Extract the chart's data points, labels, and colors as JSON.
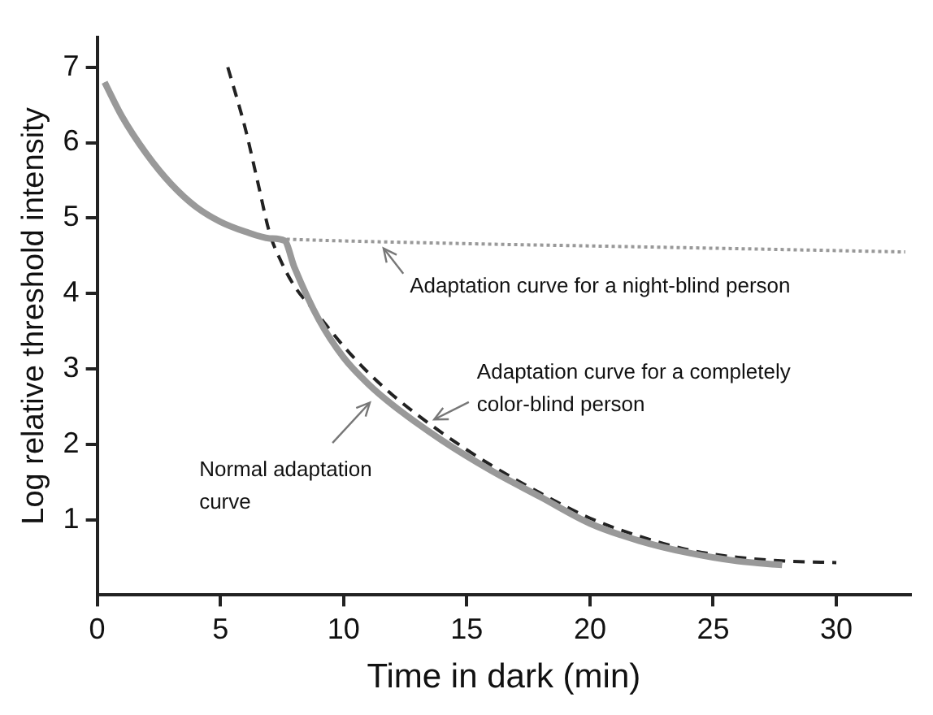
{
  "chart_data": {
    "type": "line",
    "xlabel": "Time in dark (min)",
    "ylabel": "Log relative threshold intensity",
    "xlim": [
      0,
      33
    ],
    "xticks": [
      0,
      5,
      10,
      15,
      20,
      25,
      30
    ],
    "ylim": [
      0,
      7.4
    ],
    "yticks": [
      1,
      2,
      3,
      4,
      5,
      6,
      7
    ],
    "grid": false,
    "legend": false,
    "marker": "none",
    "series": [
      {
        "color": "#999999",
        "line_style": "solid",
        "x": [
          0.3,
          1,
          2,
          3,
          4,
          5,
          6,
          7,
          7.6,
          8,
          9,
          10,
          11,
          12,
          14,
          16,
          18,
          20,
          22,
          24,
          26,
          27.8
        ],
        "values": [
          6.8,
          6.35,
          5.85,
          5.45,
          5.15,
          4.95,
          4.82,
          4.73,
          4.7,
          4.35,
          3.65,
          3.15,
          2.8,
          2.52,
          2.05,
          1.65,
          1.3,
          0.95,
          0.72,
          0.56,
          0.45,
          0.4
        ]
      },
      {
        "color": "#999999",
        "line_style": "dotted",
        "x": [
          0.3,
          1,
          2,
          3,
          4,
          5,
          6,
          7,
          7.6,
          15,
          20,
          25,
          32.8
        ],
        "values": [
          6.8,
          6.35,
          5.85,
          5.45,
          5.15,
          4.95,
          4.82,
          4.73,
          4.72,
          4.66,
          4.63,
          4.6,
          4.55
        ]
      },
      {
        "color": "#222222",
        "line_style": "dashed",
        "x": [
          5.3,
          6,
          6.5,
          7,
          7.5,
          8,
          9,
          10,
          11,
          12,
          14,
          16,
          18,
          20,
          22,
          24,
          26,
          28,
          30
        ],
        "values": [
          7,
          6.2,
          5.5,
          4.8,
          4.4,
          4.1,
          3.7,
          3.3,
          2.95,
          2.65,
          2.15,
          1.72,
          1.35,
          1.02,
          0.78,
          0.6,
          0.5,
          0.45,
          0.43
        ]
      }
    ],
    "annotations": [
      {
        "text": "Adaptation curve for a night-blind person",
        "x": 11.5,
        "y": 4.65
      },
      {
        "text": "Adaptation curve for a completely color-blind person",
        "x": 13.5,
        "y": 2.3
      },
      {
        "text": "Normal adaptation curve",
        "x": 11.2,
        "y": 2.6
      }
    ]
  }
}
